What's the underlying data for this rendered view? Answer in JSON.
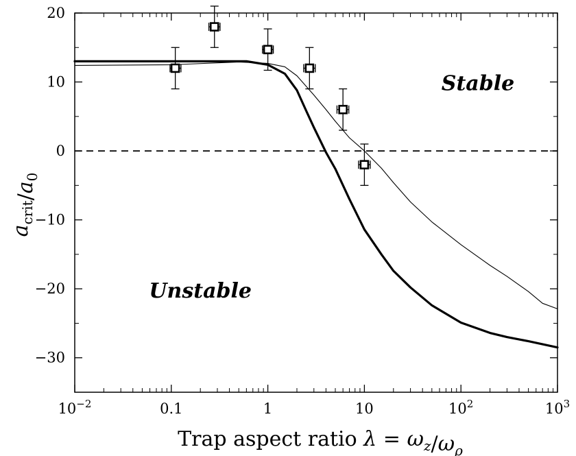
{
  "chart_data": {
    "type": "line",
    "xscale": "log",
    "xlim": [
      0.01,
      1000
    ],
    "ylim": [
      -35,
      20
    ],
    "xlabel": "Trap aspect ratio λ = ω_z/ω_ρ",
    "ylabel": "a_crit/a_0",
    "x_ticks": [
      {
        "value": 0.01,
        "base": "10",
        "exp": "−2"
      },
      {
        "value": 0.1,
        "label": "0.1"
      },
      {
        "value": 1,
        "label": "1"
      },
      {
        "value": 10,
        "label": "10"
      },
      {
        "value": 100,
        "base": "10",
        "exp": "2"
      },
      {
        "value": 1000,
        "base": "10",
        "exp": "3"
      }
    ],
    "y_ticks": [
      {
        "value": 20,
        "label": "20"
      },
      {
        "value": 10,
        "label": "10"
      },
      {
        "value": 0,
        "label": "0"
      },
      {
        "value": -10,
        "label": "−10"
      },
      {
        "value": -20,
        "label": "−20"
      },
      {
        "value": -30,
        "label": "−30"
      }
    ],
    "annotations": [
      {
        "text": "Stable",
        "x": 150,
        "y": 9.8
      },
      {
        "text": "Unstable",
        "x": 0.2,
        "y": -20.3
      }
    ],
    "series": [
      {
        "style": "thick-solid",
        "x": [
          0.01,
          0.1,
          0.6,
          1.0,
          1.5,
          2.0,
          2.5,
          3.0,
          4.0,
          5.0,
          7.0,
          10,
          15,
          20,
          30,
          50,
          100,
          200,
          300,
          500,
          1000
        ],
        "y": [
          13.0,
          13.0,
          13.0,
          12.5,
          11.2,
          8.8,
          5.8,
          3.4,
          -0.2,
          -2.6,
          -7.0,
          -11.4,
          -15.0,
          -17.4,
          -19.8,
          -22.4,
          -24.9,
          -26.4,
          -27.0,
          -27.6,
          -28.5
        ]
      },
      {
        "style": "thin-solid",
        "x": [
          0.01,
          0.1,
          0.5,
          1.0,
          1.5,
          2.0,
          3.0,
          4.0,
          5.0,
          7.0,
          10,
          15,
          20,
          30,
          50,
          100,
          200,
          300,
          500,
          700,
          1000
        ],
        "y": [
          12.4,
          12.5,
          12.9,
          12.7,
          12.2,
          10.9,
          8.1,
          6.0,
          4.3,
          1.9,
          0.0,
          -2.5,
          -4.6,
          -7.4,
          -10.3,
          -13.6,
          -16.6,
          -18.2,
          -20.4,
          -22.1,
          -22.9
        ]
      },
      {
        "style": "dashed",
        "x": [
          0.01,
          1000
        ],
        "y": [
          0,
          0
        ]
      }
    ],
    "points": [
      {
        "x": 0.11,
        "y": 12,
        "x_err": [
          0.097,
          0.126
        ],
        "y_err": 3
      },
      {
        "x": 0.28,
        "y": 18,
        "x_err": [
          0.245,
          0.32
        ],
        "y_err": 3
      },
      {
        "x": 1.0,
        "y": 14.7,
        "x_err": [
          0.88,
          1.14
        ],
        "y_err": 3
      },
      {
        "x": 2.7,
        "y": 12,
        "x_err": [
          2.35,
          3.1
        ],
        "y_err": 3
      },
      {
        "x": 6.0,
        "y": 6,
        "x_err": [
          5.2,
          6.9
        ],
        "y_err": 3
      },
      {
        "x": 10,
        "y": -2,
        "x_err": [
          8.7,
          11.5
        ],
        "y_err": 3
      }
    ]
  }
}
